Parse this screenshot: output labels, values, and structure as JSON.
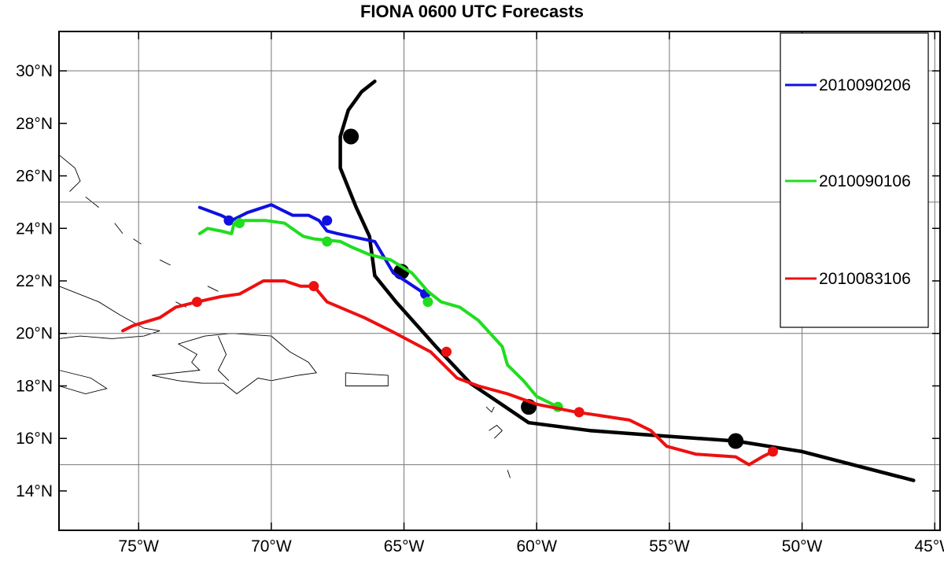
{
  "title": "FIONA 0600 UTC Forecasts",
  "chart_data": {
    "type": "line",
    "projection": "lon-lat",
    "xlim": [
      -78,
      -44.8
    ],
    "ylim": [
      12.5,
      31.5
    ],
    "grid": true,
    "legend_placement": "top-right",
    "x_ticks": [
      {
        "value": -75,
        "label": "75°W"
      },
      {
        "value": -70,
        "label": "70°W"
      },
      {
        "value": -65,
        "label": "65°W"
      },
      {
        "value": -60,
        "label": "60°W"
      },
      {
        "value": -55,
        "label": "55°W"
      },
      {
        "value": -50,
        "label": "50°W"
      },
      {
        "value": -45,
        "label": "45°W"
      }
    ],
    "y_ticks": [
      {
        "value": 14,
        "label": "14°N"
      },
      {
        "value": 16,
        "label": "16°N"
      },
      {
        "value": 18,
        "label": "18°N"
      },
      {
        "value": 20,
        "label": "20°N"
      },
      {
        "value": 22,
        "label": "22°N"
      },
      {
        "value": 24,
        "label": "24°N"
      },
      {
        "value": 26,
        "label": "26°N"
      },
      {
        "value": 28,
        "label": "28°N"
      },
      {
        "value": 30,
        "label": "30°N"
      }
    ],
    "grid_lon": [
      -75,
      -70,
      -65,
      -60,
      -55,
      -50,
      -45
    ],
    "grid_lat": [
      15,
      20,
      25,
      30
    ],
    "series": [
      {
        "color": "#000000",
        "points": [
          [
            -45.8,
            14.4
          ],
          [
            -50,
            15.5
          ],
          [
            -52.5,
            15.9
          ],
          [
            -56,
            16.15
          ],
          [
            -58,
            16.3
          ],
          [
            -60.3,
            16.6
          ],
          [
            -62.5,
            18.1
          ],
          [
            -63.8,
            19.5
          ],
          [
            -65.3,
            21.2
          ],
          [
            -66.1,
            22.2
          ],
          [
            -66.3,
            23.7
          ],
          [
            -66.8,
            24.8
          ],
          [
            -67.4,
            26.3
          ],
          [
            -67.4,
            27.5
          ],
          [
            -67.1,
            28.5
          ],
          [
            -66.6,
            29.2
          ],
          [
            -66.1,
            29.6
          ]
        ],
        "markers": [
          [
            -52.5,
            15.9
          ],
          [
            -60.3,
            17.2
          ],
          [
            -65.1,
            22.35
          ],
          [
            -67.0,
            27.5
          ]
        ],
        "marker_size": "large"
      },
      {
        "name": "2010090206",
        "color": "#1010e0",
        "points": [
          [
            -64.2,
            21.5
          ],
          [
            -64.8,
            21.9
          ],
          [
            -65.4,
            22.3
          ],
          [
            -66.1,
            23.5
          ],
          [
            -67.5,
            23.8
          ],
          [
            -67.9,
            23.9
          ],
          [
            -68.2,
            24.3
          ],
          [
            -68.6,
            24.5
          ],
          [
            -69.2,
            24.5
          ],
          [
            -69.6,
            24.7
          ],
          [
            -70.0,
            24.9
          ],
          [
            -70.9,
            24.6
          ],
          [
            -71.5,
            24.3
          ],
          [
            -71.9,
            24.5
          ],
          [
            -72.7,
            24.8
          ]
        ],
        "markers": [
          [
            -64.2,
            21.5
          ],
          [
            -67.9,
            24.3
          ],
          [
            -71.6,
            24.3
          ]
        ]
      },
      {
        "name": "2010090106",
        "color": "#20dd20",
        "points": [
          [
            -59.2,
            17.2
          ],
          [
            -60.0,
            17.6
          ],
          [
            -60.5,
            18.2
          ],
          [
            -61.1,
            18.8
          ],
          [
            -61.3,
            19.5
          ],
          [
            -62.2,
            20.5
          ],
          [
            -62.9,
            21.0
          ],
          [
            -63.6,
            21.2
          ],
          [
            -64.1,
            21.6
          ],
          [
            -64.7,
            22.3
          ],
          [
            -65.5,
            22.8
          ],
          [
            -66.3,
            23.0
          ],
          [
            -67.0,
            23.3
          ],
          [
            -67.4,
            23.5
          ],
          [
            -68.4,
            23.6
          ],
          [
            -68.8,
            23.7
          ],
          [
            -69.5,
            24.2
          ],
          [
            -70.2,
            24.3
          ],
          [
            -71.0,
            24.3
          ],
          [
            -71.4,
            24.2
          ],
          [
            -71.5,
            23.8
          ],
          [
            -71.9,
            23.9
          ],
          [
            -72.4,
            24.0
          ],
          [
            -72.7,
            23.8
          ]
        ],
        "markers": [
          [
            -59.2,
            17.2
          ],
          [
            -64.1,
            21.2
          ],
          [
            -67.9,
            23.5
          ],
          [
            -71.2,
            24.2
          ]
        ]
      },
      {
        "name": "2010083106",
        "color": "#ee1010",
        "points": [
          [
            -51.1,
            15.5
          ],
          [
            -51.5,
            15.3
          ],
          [
            -52.0,
            15.0
          ],
          [
            -52.5,
            15.3
          ],
          [
            -54.0,
            15.4
          ],
          [
            -55.1,
            15.7
          ],
          [
            -55.7,
            16.3
          ],
          [
            -56.5,
            16.7
          ],
          [
            -57.8,
            16.9
          ],
          [
            -58.5,
            17.0
          ],
          [
            -60.0,
            17.3
          ],
          [
            -61.1,
            17.7
          ],
          [
            -62.2,
            18.0
          ],
          [
            -63.0,
            18.3
          ],
          [
            -64.0,
            19.3
          ],
          [
            -65.5,
            20.1
          ],
          [
            -66.5,
            20.6
          ],
          [
            -67.9,
            21.2
          ],
          [
            -68.4,
            21.8
          ],
          [
            -68.9,
            21.8
          ],
          [
            -69.5,
            22.0
          ],
          [
            -70.3,
            22.0
          ],
          [
            -71.2,
            21.5
          ],
          [
            -71.9,
            21.4
          ],
          [
            -72.8,
            21.2
          ],
          [
            -73.6,
            21.0
          ],
          [
            -74.2,
            20.6
          ],
          [
            -75.2,
            20.3
          ],
          [
            -75.6,
            20.1
          ]
        ],
        "markers": [
          [
            -51.1,
            15.5
          ],
          [
            -58.4,
            17.0
          ],
          [
            -63.4,
            19.3
          ],
          [
            -68.4,
            21.8
          ],
          [
            -72.8,
            21.2
          ]
        ]
      }
    ],
    "coastlines": [
      [
        [
          -78,
          21.8
        ],
        [
          -76.5,
          21.2
        ],
        [
          -75.7,
          20.7
        ],
        [
          -74.8,
          20.2
        ],
        [
          -74.2,
          20.1
        ],
        [
          -74.8,
          19.9
        ],
        [
          -76.0,
          19.8
        ],
        [
          -77.2,
          19.9
        ],
        [
          -78,
          19.8
        ]
      ],
      [
        [
          -78,
          18.6
        ],
        [
          -76.8,
          18.3
        ],
        [
          -76.2,
          17.9
        ],
        [
          -77.0,
          17.7
        ],
        [
          -78,
          18.0
        ]
      ],
      [
        [
          -74.5,
          18.4
        ],
        [
          -72.7,
          18.6
        ],
        [
          -73.0,
          18.9
        ],
        [
          -72.8,
          19.2
        ],
        [
          -73.5,
          19.6
        ],
        [
          -72.5,
          19.9
        ],
        [
          -71.5,
          20.0
        ],
        [
          -70.0,
          19.9
        ],
        [
          -69.3,
          19.3
        ],
        [
          -68.6,
          18.9
        ],
        [
          -68.3,
          18.5
        ],
        [
          -69.0,
          18.4
        ],
        [
          -70.0,
          18.2
        ],
        [
          -70.5,
          18.3
        ],
        [
          -71.3,
          17.7
        ],
        [
          -71.8,
          18.1
        ],
        [
          -72.6,
          18.1
        ],
        [
          -73.5,
          18.2
        ],
        [
          -74.5,
          18.4
        ]
      ],
      [
        [
          -67.2,
          18.5
        ],
        [
          -65.6,
          18.4
        ],
        [
          -65.6,
          18.0
        ],
        [
          -67.2,
          18.0
        ],
        [
          -67.2,
          18.5
        ]
      ],
      [
        [
          -72.0,
          19.9
        ],
        [
          -71.7,
          19.2
        ],
        [
          -72.0,
          18.6
        ],
        [
          -71.6,
          18.2
        ]
      ],
      [
        [
          -61.9,
          17.2
        ],
        [
          -61.7,
          17.0
        ],
        [
          -61.6,
          17.2
        ]
      ],
      [
        [
          -61.8,
          16.3
        ],
        [
          -61.5,
          16.5
        ],
        [
          -61.3,
          16.3
        ],
        [
          -61.6,
          16.0
        ]
      ],
      [
        [
          -61.1,
          14.8
        ],
        [
          -61.0,
          14.5
        ]
      ],
      [
        [
          -78,
          26.8
        ],
        [
          -77.4,
          26.3
        ],
        [
          -77.2,
          25.8
        ],
        [
          -77.6,
          25.4
        ]
      ],
      [
        [
          -77.0,
          25.2
        ],
        [
          -76.5,
          24.8
        ]
      ],
      [
        [
          -75.9,
          24.2
        ],
        [
          -75.6,
          23.8
        ]
      ],
      [
        [
          -75.2,
          23.6
        ],
        [
          -74.9,
          23.4
        ]
      ],
      [
        [
          -74.2,
          22.8
        ],
        [
          -73.8,
          22.6
        ]
      ],
      [
        [
          -73.6,
          21.2
        ],
        [
          -73.2,
          21.0
        ]
      ],
      [
        [
          -72.4,
          21.8
        ],
        [
          -72.0,
          21.6
        ]
      ]
    ]
  }
}
